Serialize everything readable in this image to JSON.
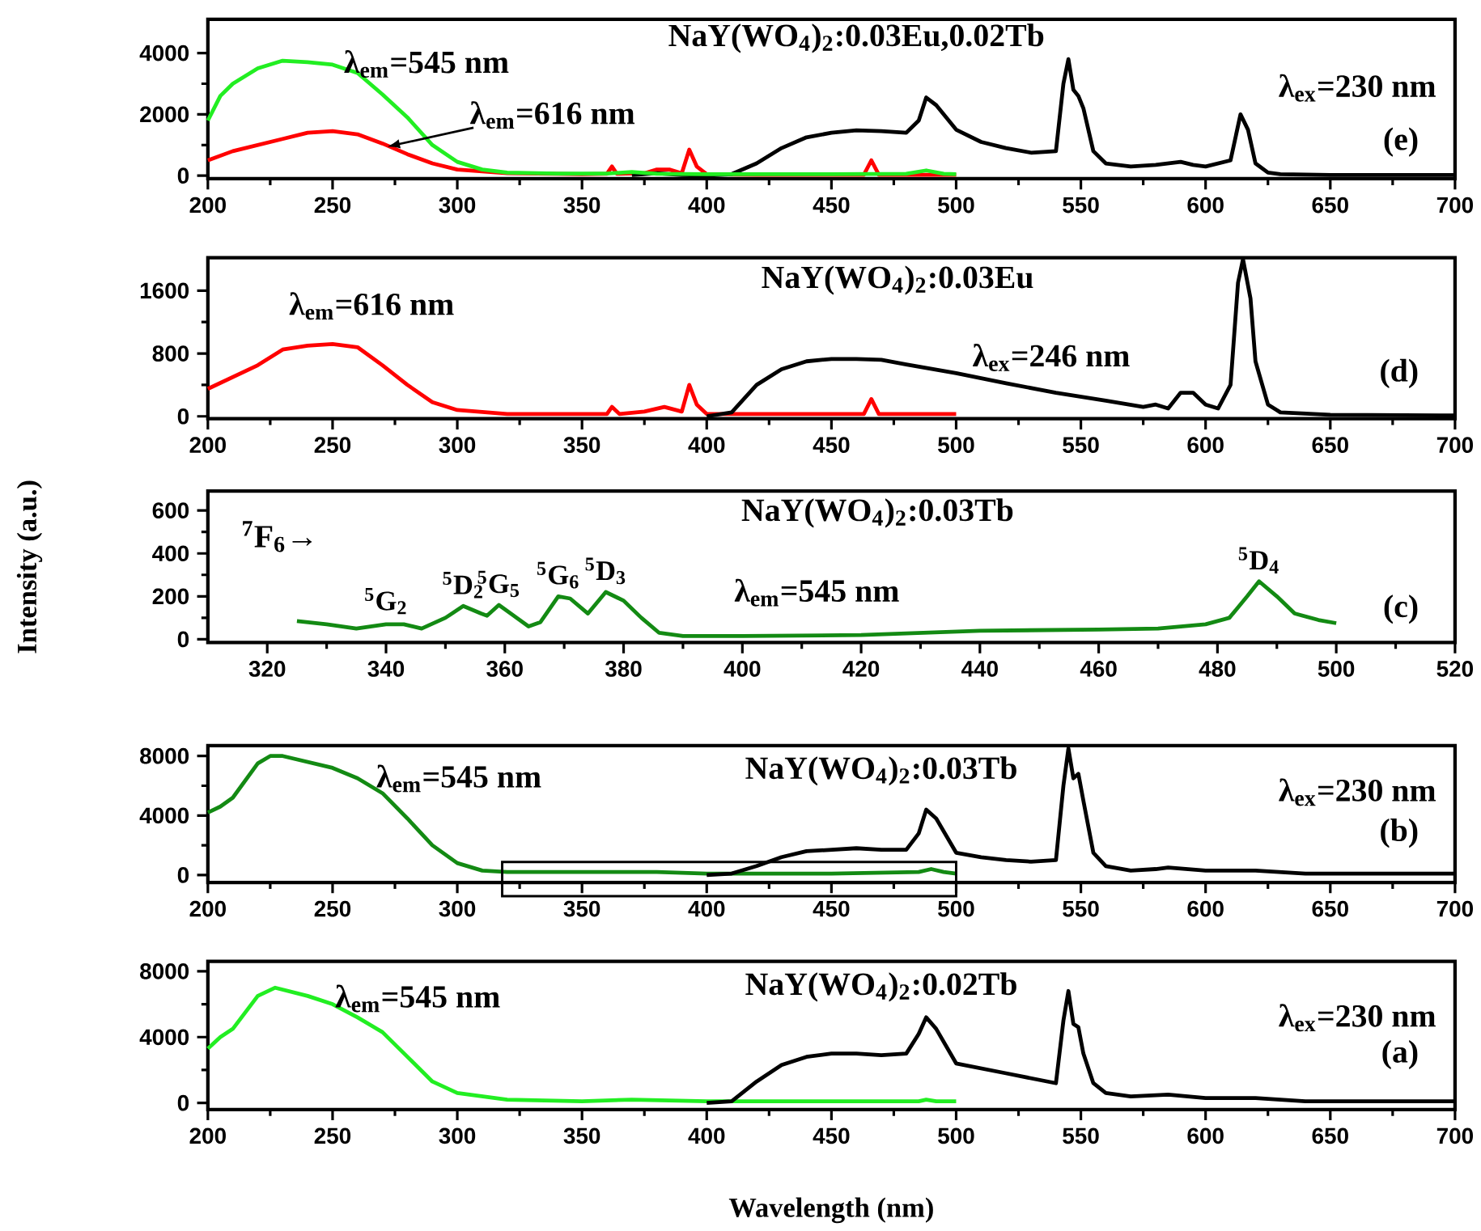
{
  "chart_data": [
    {
      "type": "line",
      "title": "NaY(WO$_{4}$)$_{2}$:0.03Eu,0.02Tb",
      "annotations": [
        "λ$_{em}$=545 nm",
        {
          "text": "λ$_{em}$=616 nm",
          "x": 272,
          "y": 950
        },
        "λ$_{ex}$=230 nm",
        "(e)"
      ],
      "xlim": [
        200,
        700
      ],
      "ylim": [
        -100,
        5100
      ],
      "xticks": [
        200,
        250,
        300,
        350,
        400,
        450,
        500,
        550,
        600,
        650,
        700
      ],
      "yticks": [
        0,
        2000,
        4000
      ],
      "line_style": "solid",
      "series": [
        {
          "color": "#ff0000",
          "x": [
            200,
            210,
            220,
            230,
            240,
            250,
            260,
            270,
            280,
            290,
            300,
            320,
            350,
            360,
            362,
            364,
            375,
            380,
            385,
            390,
            393,
            396,
            400,
            420,
            463,
            466,
            469,
            500
          ],
          "values": [
            500,
            800,
            1000,
            1200,
            1400,
            1450,
            1350,
            1050,
            700,
            400,
            200,
            80,
            50,
            60,
            300,
            60,
            80,
            200,
            200,
            80,
            850,
            300,
            50,
            30,
            30,
            500,
            30,
            30
          ]
        },
        {
          "color": "#000000",
          "x": [
            370,
            380,
            390,
            400,
            410,
            420,
            430,
            440,
            450,
            460,
            470,
            480,
            485,
            488,
            492,
            500,
            510,
            520,
            530,
            540,
            543,
            545,
            547,
            549,
            551,
            555,
            560,
            570,
            580,
            590,
            595,
            600,
            610,
            614,
            617,
            620,
            625,
            630,
            650,
            700
          ],
          "values": [
            20,
            80,
            20,
            0,
            50,
            400,
            900,
            1250,
            1400,
            1480,
            1450,
            1400,
            1800,
            2550,
            2300,
            1500,
            1100,
            900,
            750,
            800,
            3000,
            3800,
            2800,
            2600,
            2200,
            800,
            400,
            300,
            350,
            450,
            350,
            300,
            500,
            2000,
            1500,
            400,
            100,
            50,
            20,
            20
          ]
        },
        {
          "color": "#22ee22",
          "x": [
            200,
            205,
            210,
            220,
            230,
            240,
            250,
            260,
            270,
            280,
            290,
            300,
            310,
            320,
            340,
            360,
            370,
            380,
            400,
            450,
            480,
            488,
            495,
            500
          ],
          "values": [
            1800,
            2600,
            3000,
            3500,
            3750,
            3700,
            3620,
            3350,
            2650,
            1900,
            1000,
            450,
            200,
            100,
            70,
            70,
            120,
            60,
            50,
            50,
            60,
            170,
            60,
            50
          ]
        }
      ]
    },
    {
      "type": "line",
      "title": "NaY(WO$_{4}$)$_{2}$:0.03Eu",
      "annotations": [
        "λ$_{em}$=616 nm",
        "λ$_{ex}$=246 nm",
        "(d)"
      ],
      "xlim": [
        200,
        700
      ],
      "ylim": [
        -30,
        2020
      ],
      "xticks": [
        200,
        250,
        300,
        350,
        400,
        450,
        500,
        550,
        600,
        650,
        700
      ],
      "yticks": [
        0,
        800,
        1600
      ],
      "line_style": "solid",
      "series": [
        {
          "color": "#ff0000",
          "x": [
            200,
            210,
            220,
            230,
            240,
            250,
            260,
            270,
            280,
            290,
            300,
            320,
            360,
            362,
            365,
            375,
            383,
            390,
            393,
            396,
            400,
            463,
            466,
            469,
            500
          ],
          "values": [
            350,
            500,
            650,
            850,
            900,
            920,
            880,
            650,
            400,
            180,
            80,
            30,
            30,
            120,
            30,
            60,
            120,
            60,
            400,
            150,
            30,
            30,
            220,
            30,
            30
          ]
        },
        {
          "color": "#000000",
          "x": [
            400,
            410,
            420,
            430,
            440,
            450,
            460,
            470,
            480,
            500,
            520,
            540,
            560,
            575,
            580,
            585,
            590,
            595,
            600,
            605,
            610,
            613,
            615,
            618,
            620,
            625,
            630,
            650,
            700
          ],
          "values": [
            0,
            50,
            400,
            600,
            700,
            730,
            730,
            720,
            660,
            550,
            420,
            300,
            200,
            120,
            150,
            100,
            300,
            300,
            150,
            100,
            400,
            1700,
            2000,
            1500,
            700,
            150,
            50,
            20,
            10
          ]
        }
      ]
    },
    {
      "type": "line",
      "title": "NaY(WO$_{4}$)$_{2}$:0.03Tb",
      "ylabel": "Intensity (a.u.)",
      "annotations": [
        "$^{7}$F$_{6}$→",
        {
          "text": "$^{5}$G$_{2}$",
          "x": 340,
          "y": 70
        },
        {
          "text": "$^{5}$D$_{2}$",
          "x": 353,
          "y": 155
        },
        {
          "text": "$^{5}$G$_{5}$",
          "x": 359,
          "y": 160
        },
        {
          "text": "$^{5}$G$_{6}$",
          "x": 369,
          "y": 200
        },
        {
          "text": "$^{5}$D$_{3}$",
          "x": 377,
          "y": 220
        },
        "λ$_{em}$=545 nm",
        {
          "text": "$^{5}$D$_{4}$",
          "x": 487,
          "y": 270
        },
        "(c)"
      ],
      "xlim": [
        310,
        520
      ],
      "ylim": [
        -15,
        690
      ],
      "xticks": [
        320,
        340,
        360,
        380,
        400,
        420,
        440,
        460,
        480,
        500,
        520
      ],
      "yticks": [
        0,
        200,
        400,
        600
      ],
      "line_style": "solid",
      "series": [
        {
          "color": "#138a13",
          "x": [
            325,
            330,
            335,
            340,
            343,
            346,
            350,
            353,
            356,
            357,
            359,
            361,
            364,
            366,
            369,
            371,
            374,
            377,
            380,
            383,
            386,
            390,
            400,
            420,
            440,
            460,
            470,
            478,
            482,
            485,
            487,
            490,
            493,
            497,
            500
          ],
          "values": [
            85,
            70,
            50,
            70,
            70,
            50,
            100,
            155,
            120,
            110,
            160,
            120,
            60,
            80,
            200,
            190,
            120,
            220,
            180,
            100,
            30,
            15,
            15,
            20,
            40,
            45,
            50,
            70,
            100,
            200,
            270,
            200,
            120,
            90,
            75
          ]
        }
      ]
    },
    {
      "type": "line",
      "title": "NaY(WO$_{4}$)$_{2}$:0.03Tb",
      "annotations": [
        "λ$_{em}$=545 nm",
        "λ$_{ex}$=230 nm",
        "(b)"
      ],
      "xlim": [
        200,
        700
      ],
      "ylim": [
        -500,
        8700
      ],
      "xticks": [
        200,
        250,
        300,
        350,
        400,
        450,
        500,
        550,
        600,
        650,
        700
      ],
      "yticks": [
        0,
        4000,
        8000
      ],
      "line_style": "solid",
      "series": [
        {
          "color": "#138a13",
          "x": [
            200,
            205,
            210,
            220,
            225,
            230,
            240,
            250,
            260,
            270,
            280,
            290,
            300,
            310,
            320,
            350,
            380,
            400,
            450,
            485,
            490,
            495,
            500
          ],
          "values": [
            4200,
            4600,
            5200,
            7500,
            8000,
            8000,
            7600,
            7200,
            6500,
            5500,
            3800,
            2000,
            800,
            300,
            200,
            200,
            200,
            100,
            100,
            200,
            400,
            200,
            100
          ]
        },
        {
          "color": "#000000",
          "x": [
            400,
            410,
            420,
            430,
            440,
            450,
            460,
            470,
            480,
            485,
            488,
            492,
            500,
            510,
            520,
            530,
            540,
            543,
            545,
            547,
            549,
            551,
            555,
            560,
            570,
            580,
            585,
            600,
            620,
            640,
            700
          ],
          "values": [
            0,
            100,
            600,
            1200,
            1600,
            1700,
            1800,
            1700,
            1700,
            2800,
            4400,
            3800,
            1500,
            1200,
            1000,
            900,
            1000,
            6000,
            8500,
            6500,
            6800,
            5000,
            1500,
            600,
            300,
            400,
            500,
            300,
            300,
            100,
            100
          ]
        }
      ]
    },
    {
      "type": "line",
      "title": "NaY(WO$_{4}$)$_{2}$:0.02Tb",
      "xlabel": "Wavelength (nm)",
      "annotations": [
        "λ$_{em}$=545 nm",
        "λ$_{ex}$=230 nm",
        "(a)"
      ],
      "xlim": [
        200,
        700
      ],
      "ylim": [
        -400,
        8600
      ],
      "xticks": [
        200,
        250,
        300,
        350,
        400,
        450,
        500,
        550,
        600,
        650,
        700
      ],
      "yticks": [
        0,
        4000,
        8000
      ],
      "line_style": "solid",
      "series": [
        {
          "color": "#22ee22",
          "x": [
            200,
            205,
            210,
            220,
            227,
            240,
            250,
            260,
            270,
            280,
            290,
            300,
            320,
            350,
            370,
            400,
            450,
            485,
            488,
            492,
            500
          ],
          "values": [
            3300,
            4000,
            4500,
            6500,
            7000,
            6500,
            6000,
            5200,
            4300,
            2800,
            1300,
            600,
            200,
            100,
            200,
            100,
            100,
            100,
            200,
            100,
            100
          ]
        },
        {
          "color": "#000000",
          "x": [
            400,
            410,
            420,
            430,
            440,
            450,
            460,
            470,
            480,
            485,
            488,
            492,
            500,
            520,
            540,
            543,
            545,
            547,
            549,
            551,
            555,
            560,
            570,
            585,
            600,
            620,
            640,
            700
          ],
          "values": [
            0,
            100,
            1300,
            2300,
            2800,
            3000,
            3000,
            2900,
            3000,
            4200,
            5200,
            4500,
            2400,
            1800,
            1200,
            5000,
            6800,
            4800,
            4600,
            3000,
            1200,
            600,
            400,
            500,
            300,
            300,
            100,
            100
          ]
        }
      ]
    }
  ]
}
